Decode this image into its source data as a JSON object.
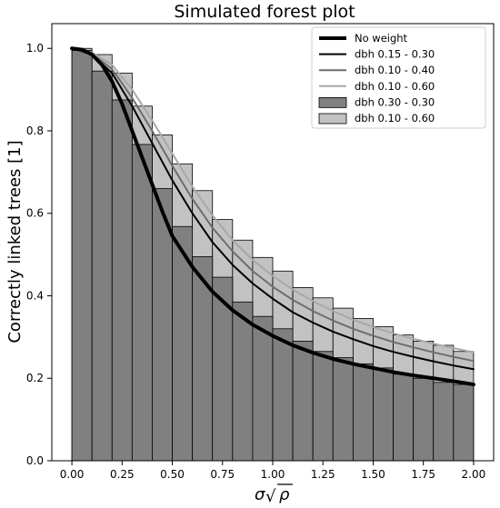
{
  "chart_data": {
    "type": "bar",
    "title": "Simulated forest plot",
    "xlabel": "σ√ρ",
    "ylabel": "Correctly linked trees [1]",
    "xlim": [
      -0.1,
      2.1
    ],
    "ylim": [
      0.0,
      1.06
    ],
    "grid": false,
    "legend_position": "top-right",
    "x_ticks": [
      0.0,
      0.25,
      0.5,
      0.75,
      1.0,
      1.25,
      1.5,
      1.75,
      2.0
    ],
    "x_tick_labels": [
      "0.00",
      "0.25",
      "0.50",
      "0.75",
      "1.00",
      "1.25",
      "1.50",
      "1.75",
      "2.00"
    ],
    "y_ticks": [
      0.0,
      0.2,
      0.4,
      0.6,
      0.8,
      1.0
    ],
    "y_tick_labels": [
      "0.0",
      "0.2",
      "0.4",
      "0.6",
      "0.8",
      "1.0"
    ],
    "bar_width": 0.1,
    "bar_series": [
      {
        "name": "dbh 0.10 - 0.60",
        "color": "#c2c2c2",
        "x": [
          0.05,
          0.15,
          0.25,
          0.35,
          0.45,
          0.55,
          0.65,
          0.75,
          0.85,
          0.95,
          1.05,
          1.15,
          1.25,
          1.35,
          1.45,
          1.55,
          1.65,
          1.75,
          1.85,
          1.95
        ],
        "values": [
          1.0,
          0.985,
          0.94,
          0.86,
          0.79,
          0.72,
          0.655,
          0.585,
          0.535,
          0.493,
          0.46,
          0.42,
          0.395,
          0.37,
          0.345,
          0.325,
          0.305,
          0.29,
          0.28,
          0.265
        ]
      },
      {
        "name": "dbh 0.30 - 0.30",
        "color": "#808080",
        "x": [
          0.05,
          0.15,
          0.25,
          0.35,
          0.45,
          0.55,
          0.65,
          0.75,
          0.85,
          0.95,
          1.05,
          1.15,
          1.25,
          1.35,
          1.45,
          1.55,
          1.65,
          1.75,
          1.85,
          1.95
        ],
        "values": [
          0.995,
          0.945,
          0.875,
          0.767,
          0.66,
          0.568,
          0.495,
          0.445,
          0.385,
          0.35,
          0.32,
          0.29,
          0.265,
          0.25,
          0.235,
          0.225,
          0.21,
          0.2,
          0.19,
          0.185
        ]
      }
    ],
    "line_series": [
      {
        "name": "No weight",
        "color": "#000000",
        "width": 4,
        "x": [
          0.0,
          0.05,
          0.1,
          0.15,
          0.2,
          0.25,
          0.3,
          0.35,
          0.4,
          0.45,
          0.5,
          0.6,
          0.7,
          0.8,
          0.9,
          1.0,
          1.1,
          1.2,
          1.3,
          1.4,
          1.5,
          1.6,
          1.7,
          1.8,
          1.9,
          2.0
        ],
        "y": [
          1.0,
          0.997,
          0.985,
          0.96,
          0.92,
          0.865,
          0.8,
          0.735,
          0.67,
          0.605,
          0.545,
          0.47,
          0.41,
          0.365,
          0.33,
          0.303,
          0.28,
          0.262,
          0.247,
          0.235,
          0.225,
          0.215,
          0.207,
          0.2,
          0.193,
          0.185
        ]
      },
      {
        "name": "dbh 0.15 - 0.30",
        "color": "#000000",
        "width": 2,
        "x": [
          0.0,
          0.1,
          0.2,
          0.3,
          0.4,
          0.5,
          0.6,
          0.7,
          0.8,
          0.9,
          1.0,
          1.1,
          1.2,
          1.3,
          1.4,
          1.5,
          1.6,
          1.7,
          1.8,
          1.9,
          2.0
        ],
        "y": [
          1.0,
          0.985,
          0.94,
          0.86,
          0.77,
          0.68,
          0.6,
          0.53,
          0.475,
          0.43,
          0.393,
          0.36,
          0.335,
          0.313,
          0.295,
          0.278,
          0.264,
          0.252,
          0.241,
          0.231,
          0.222
        ]
      },
      {
        "name": "dbh 0.10 - 0.40",
        "color": "#6e6e6e",
        "width": 2,
        "x": [
          0.0,
          0.1,
          0.2,
          0.3,
          0.4,
          0.5,
          0.6,
          0.7,
          0.8,
          0.9,
          1.0,
          1.1,
          1.2,
          1.3,
          1.4,
          1.5,
          1.6,
          1.7,
          1.8,
          1.9,
          2.0
        ],
        "y": [
          1.0,
          0.987,
          0.95,
          0.88,
          0.8,
          0.715,
          0.635,
          0.565,
          0.508,
          0.46,
          0.422,
          0.39,
          0.363,
          0.34,
          0.32,
          0.303,
          0.288,
          0.275,
          0.263,
          0.252,
          0.242
        ]
      },
      {
        "name": "dbh 0.10 - 0.60",
        "color": "#a8a8a8",
        "width": 2,
        "x": [
          0.0,
          0.1,
          0.2,
          0.3,
          0.4,
          0.5,
          0.6,
          0.7,
          0.8,
          0.9,
          1.0,
          1.1,
          1.2,
          1.3,
          1.4,
          1.5,
          1.6,
          1.7,
          1.8,
          1.9,
          2.0
        ],
        "y": [
          1.0,
          0.99,
          0.96,
          0.9,
          0.825,
          0.745,
          0.665,
          0.595,
          0.535,
          0.487,
          0.448,
          0.415,
          0.387,
          0.363,
          0.342,
          0.324,
          0.309,
          0.296,
          0.284,
          0.273,
          0.263
        ]
      }
    ],
    "legend": [
      {
        "label": "No weight",
        "kind": "line",
        "color": "#000000",
        "width": 4
      },
      {
        "label": "dbh 0.15 - 0.30",
        "kind": "line",
        "color": "#000000",
        "width": 2
      },
      {
        "label": "dbh 0.10 - 0.40",
        "kind": "line",
        "color": "#6e6e6e",
        "width": 2
      },
      {
        "label": "dbh 0.10 - 0.60",
        "kind": "line",
        "color": "#a8a8a8",
        "width": 2
      },
      {
        "label": "dbh 0.30 - 0.30",
        "kind": "patch",
        "color": "#808080"
      },
      {
        "label": "dbh 0.10 - 0.60",
        "kind": "patch",
        "color": "#c2c2c2"
      }
    ]
  }
}
